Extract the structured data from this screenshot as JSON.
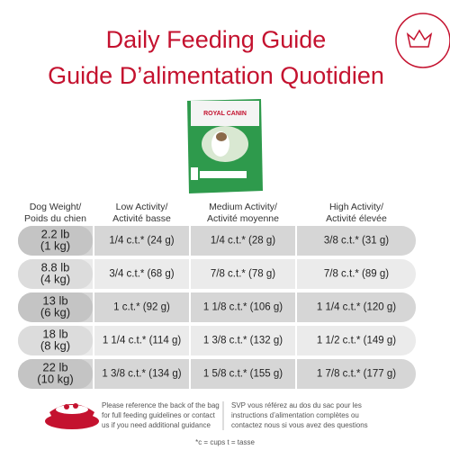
{
  "header": {
    "title_en": "Daily Feeding Guide",
    "title_fr": "Guide D’alimentation Quotidien"
  },
  "table": {
    "columns": [
      [
        "Dog Weight/",
        "Poids du chien"
      ],
      [
        "Low Activity/",
        "Activité basse"
      ],
      [
        "Medium Activity/",
        "Activité moyenne"
      ],
      [
        "High Activity/",
        "Activité élevée"
      ]
    ],
    "rows": [
      [
        [
          "2.2 lb",
          "(1 kg)"
        ],
        "1/4 c.t.* (24 g)",
        "1/4 c.t.* (28 g)",
        "3/8 c.t.* (31 g)"
      ],
      [
        [
          "8.8 lb",
          "(4 kg)"
        ],
        "3/4 c.t.* (68 g)",
        "7/8 c.t.* (78 g)",
        "7/8 c.t.* (89 g)"
      ],
      [
        [
          "13 lb",
          "(6 kg)"
        ],
        "1 c.t.* (92 g)",
        "1 1/8 c.t.* (106 g)",
        "1 1/4 c.t.* (120 g)"
      ],
      [
        [
          "18 lb",
          "(8 kg)"
        ],
        "1 1/4 c.t.* (114 g)",
        "1 3/8 c.t.* (132 g)",
        "1 1/2 c.t.* (149 g)"
      ],
      [
        [
          "22 lb",
          "(10 kg)"
        ],
        "1 3/8 c.t.* (134 g)",
        "1 5/8 c.t.* (155 g)",
        "1 7/8 c.t.* (177 g)"
      ]
    ]
  },
  "footer": {
    "note_en": [
      "Please reference the back of the bag",
      "for full feeding guidelines or contact",
      "us if you need additional guidance"
    ],
    "note_fr": [
      "SVP vous référez au dos du sac pour les",
      "instructions d’alimentation complètes ou",
      "contactez nous si vous avez des questions"
    ],
    "legend": "*c = cups t = tasse"
  }
}
